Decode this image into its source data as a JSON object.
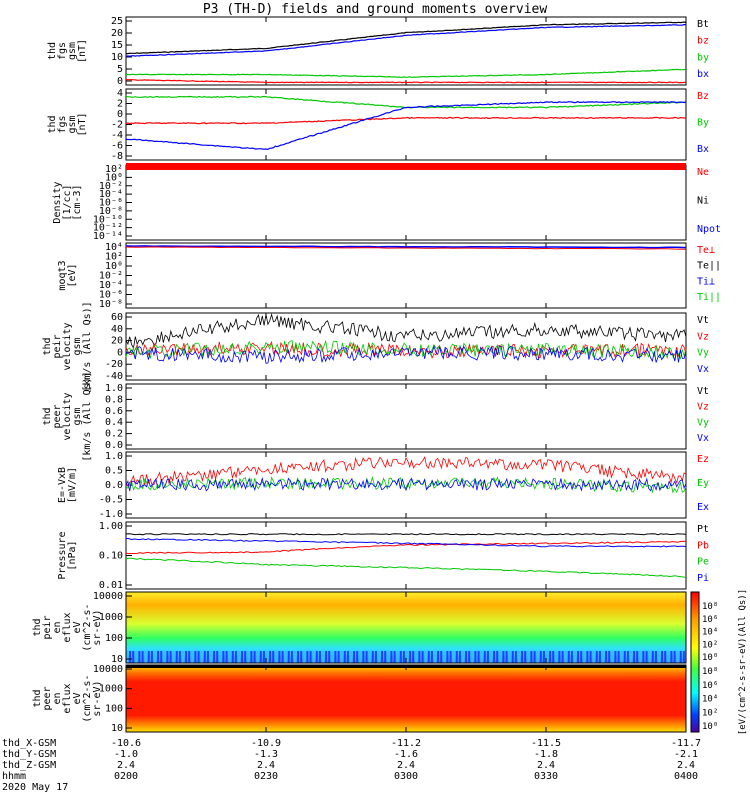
{
  "title": "P3 (TH-D) fields and ground moments overview",
  "date": "2020 May 17",
  "colors": {
    "black": "#000000",
    "red": "#ff0000",
    "green": "#00c800",
    "blue": "#0000ff"
  },
  "panels": [
    {
      "id": "fgs",
      "ylabel": [
        "thd",
        "fgs",
        "gsm",
        "[nT]"
      ],
      "yticks": [
        "25",
        "20",
        "15",
        "10",
        "5",
        "0"
      ],
      "legend": [
        {
          "t": "Bt",
          "c": "black"
        },
        {
          "t": "bz",
          "c": "red"
        },
        {
          "t": "by",
          "c": "green"
        },
        {
          "t": "bx",
          "c": "blue"
        }
      ]
    },
    {
      "id": "fgs2",
      "ylabel": [
        "thd",
        "fgs",
        "gsm",
        "[nT]"
      ],
      "yticks": [
        "4",
        "2",
        "0",
        "-2",
        "-4",
        "-6",
        "-8"
      ],
      "legend": [
        {
          "t": "Bz",
          "c": "red"
        },
        {
          "t": "By",
          "c": "green"
        },
        {
          "t": "Bx",
          "c": "blue"
        }
      ]
    },
    {
      "id": "density",
      "ylabel": [
        "Density",
        "[1/cc]",
        "[cm-3]"
      ],
      "yticks": [
        "10²",
        "10⁰",
        "10⁻²",
        "10⁻⁴",
        "10⁻⁶",
        "10⁻⁸",
        "10⁻¹⁰",
        "10⁻¹²",
        "10⁻¹⁴"
      ],
      "legend": [
        {
          "t": "Ne",
          "c": "red"
        },
        {
          "t": "Ni",
          "c": "black"
        },
        {
          "t": "Npot",
          "c": "blue"
        }
      ]
    },
    {
      "id": "temp",
      "ylabel": [
        "moqt3",
        "[eV]"
      ],
      "yticks": [
        "10⁴",
        "10²",
        "10⁰",
        "10⁻²",
        "10⁻⁴",
        "10⁻⁶",
        "10⁻⁸"
      ],
      "legend": [
        {
          "t": "Te⊥",
          "c": "red"
        },
        {
          "t": "Te||",
          "c": "black"
        },
        {
          "t": "Ti⊥",
          "c": "blue"
        },
        {
          "t": "Ti||",
          "c": "green"
        }
      ]
    },
    {
      "id": "peir",
      "ylabel": [
        "thd",
        "peir",
        "velocity",
        "gsm",
        "[km/s (All Qs)]"
      ],
      "yticks": [
        "60",
        "40",
        "20",
        "0",
        "-20",
        "-40"
      ],
      "legend": [
        {
          "t": "Vt",
          "c": "black"
        },
        {
          "t": "Vz",
          "c": "red"
        },
        {
          "t": "Vy",
          "c": "green"
        },
        {
          "t": "Vx",
          "c": "blue"
        }
      ]
    },
    {
      "id": "peer",
      "ylabel": [
        "thd",
        "peer",
        "velocity",
        "gsm",
        "[km/s (All Qs)]"
      ],
      "yticks": [
        "1.0",
        "0.8",
        "0.6",
        "0.4",
        "0.2",
        "0.0"
      ],
      "legend": [
        {
          "t": "Vt",
          "c": "black"
        },
        {
          "t": "Vz",
          "c": "red"
        },
        {
          "t": "Vy",
          "c": "green"
        },
        {
          "t": "Vx",
          "c": "blue"
        }
      ]
    },
    {
      "id": "efield",
      "ylabel": [
        "E=-VxB",
        "[mV/m]"
      ],
      "yticks": [
        "1.0",
        "0.5",
        "0.0",
        "-0.5",
        "-1.0"
      ],
      "legend": [
        {
          "t": "Ez",
          "c": "red"
        },
        {
          "t": "Ey",
          "c": "green"
        },
        {
          "t": "Ex",
          "c": "blue"
        }
      ]
    },
    {
      "id": "pressure",
      "ylabel": [
        "Pressure",
        "[nPa]"
      ],
      "yticks": [
        "1.00",
        "0.10",
        "0.01"
      ],
      "legend": [
        {
          "t": "Pt",
          "c": "black"
        },
        {
          "t": "Pb",
          "c": "red"
        },
        {
          "t": "Pe",
          "c": "green"
        },
        {
          "t": "Pi",
          "c": "blue"
        }
      ]
    },
    {
      "id": "peirspec",
      "ylabel": [
        "thd",
        "peir",
        "en",
        "eflux",
        "eV",
        "(cm^2-s-",
        "sr-eV)"
      ],
      "yticks": [
        "10000",
        "1000",
        "100",
        "10"
      ],
      "legend": []
    },
    {
      "id": "peerspec",
      "ylabel": [
        "thd",
        "peer",
        "en",
        "eflux",
        "eV",
        "(cm^2-s-",
        "sr-eV)"
      ],
      "yticks": [
        "10000",
        "1000",
        "100",
        "10"
      ],
      "legend": []
    }
  ],
  "colorbar": {
    "ticks": [
      "10⁸",
      "10⁶",
      "10⁴",
      "10²",
      "10⁰"
    ],
    "label": "[eV/(cm^2-s-sr-eV)(All Qs)]"
  },
  "chart_data": [
    {
      "type": "line",
      "title": "P3 (TH-D) fields and ground moments overview",
      "ylabel": "thd fgs gsm [nT]",
      "ylim": [
        0,
        26
      ],
      "x": [
        "0200",
        "0230",
        "0300",
        "0330",
        "0400"
      ],
      "series": [
        {
          "name": "Bt",
          "values": [
            12,
            14,
            20,
            23,
            24
          ]
        },
        {
          "name": "bz",
          "values": [
            2,
            1,
            1,
            1,
            1
          ]
        },
        {
          "name": "by",
          "values": [
            4,
            4,
            3,
            4,
            6
          ]
        },
        {
          "name": "bx",
          "values": [
            11,
            13,
            19,
            22,
            23
          ]
        }
      ]
    },
    {
      "type": "line",
      "ylabel": "thd fgs gsm [nT]",
      "ylim": [
        -9,
        4.5
      ],
      "x": [
        "0200",
        "0230",
        "0300",
        "0330",
        "0400"
      ],
      "series": [
        {
          "name": "Bz",
          "values": [
            -2,
            -2,
            -1,
            -1,
            -1
          ]
        },
        {
          "name": "By",
          "values": [
            3,
            3,
            1,
            1,
            2
          ]
        },
        {
          "name": "Bx",
          "values": [
            -5,
            -7,
            1,
            2,
            2
          ]
        }
      ]
    },
    {
      "type": "line",
      "ylabel": "Density [1/cc] [cm-3]",
      "x": [
        "0200",
        "0230",
        "0300",
        "0330",
        "0400"
      ],
      "series": [
        {
          "name": "Ne",
          "values": [
            1,
            1,
            1,
            1,
            1
          ]
        }
      ]
    },
    {
      "type": "line",
      "ylabel": "moqt3 [eV]",
      "x": [
        "0200",
        "0230",
        "0300",
        "0330",
        "0400"
      ],
      "series": [
        {
          "name": "Te⊥",
          "values": [
            1000,
            1000,
            1000,
            1000,
            1000
          ]
        }
      ]
    },
    {
      "type": "line",
      "ylabel": "thd peir velocity gsm [km/s (All Qs)]",
      "ylim": [
        -40,
        60
      ],
      "x": [
        "0200",
        "0230",
        "0300",
        "0330",
        "0400"
      ],
      "series": [
        {
          "name": "Vt",
          "values": [
            15,
            50,
            25,
            35,
            25
          ]
        },
        {
          "name": "Vz",
          "values": [
            5,
            8,
            3,
            3,
            5
          ]
        },
        {
          "name": "Vy",
          "values": [
            0,
            10,
            5,
            5,
            0
          ]
        },
        {
          "name": "Vx",
          "values": [
            0,
            -5,
            0,
            0,
            -5
          ]
        }
      ]
    },
    {
      "type": "line",
      "ylabel": "thd peer velocity gsm [km/s (All Qs)]",
      "ylim": [
        0,
        1
      ],
      "x": [
        "0200",
        "0230",
        "0300",
        "0330",
        "0400"
      ],
      "series": []
    },
    {
      "type": "line",
      "ylabel": "E=-VxB [mV/m]",
      "ylim": [
        -1,
        1
      ],
      "x": [
        "0200",
        "0230",
        "0300",
        "0330",
        "0400"
      ],
      "series": [
        {
          "name": "Ez",
          "values": [
            0.1,
            0.5,
            0.7,
            0.6,
            0.2
          ]
        },
        {
          "name": "Ey",
          "values": [
            0,
            0.05,
            0.05,
            0.05,
            -0.1
          ]
        },
        {
          "name": "Ex",
          "values": [
            0,
            0.02,
            0.02,
            0.02,
            0
          ]
        }
      ]
    },
    {
      "type": "line",
      "ylabel": "Pressure [nPa]",
      "x": [
        "0200",
        "0230",
        "0300",
        "0330",
        "0400"
      ],
      "series": [
        {
          "name": "Pt",
          "values": [
            0.5,
            0.5,
            0.5,
            0.5,
            0.5
          ]
        },
        {
          "name": "Pb",
          "values": [
            0.12,
            0.13,
            0.22,
            0.25,
            0.28
          ]
        },
        {
          "name": "Pe",
          "values": [
            0.08,
            0.05,
            0.04,
            0.03,
            0.02
          ]
        },
        {
          "name": "Pi",
          "values": [
            0.35,
            0.3,
            0.25,
            0.2,
            0.2
          ]
        }
      ]
    },
    {
      "type": "heatmap",
      "ylabel": "thd peir en eflux eV (cm^2-s-sr-eV)",
      "x": [
        "0200",
        "0230",
        "0300",
        "0330",
        "0400"
      ],
      "y": [
        10,
        100,
        1000,
        10000
      ]
    },
    {
      "type": "heatmap",
      "ylabel": "thd peer en eflux eV (cm^2-s-sr-eV)",
      "x": [
        "0200",
        "0230",
        "0300",
        "0330",
        "0400"
      ],
      "y": [
        10,
        100,
        1000,
        10000
      ]
    }
  ],
  "xaxis": {
    "labels": [
      "thd_X-GSM",
      "thd_Y-GSM",
      "thd_Z-GSM",
      "hhmm"
    ],
    "cols": [
      {
        "x": "-10.6",
        "y": "-1.0",
        "z": "2.4",
        "t": "0200"
      },
      {
        "x": "-10.9",
        "y": "-1.3",
        "z": "2.4",
        "t": "0230"
      },
      {
        "x": "-11.2",
        "y": "-1.6",
        "z": "2.4",
        "t": "0300"
      },
      {
        "x": "-11.5",
        "y": "-1.8",
        "z": "2.4",
        "t": "0330"
      },
      {
        "x": "-11.7",
        "y": "-2.1",
        "z": "2.4",
        "t": "0400"
      }
    ]
  }
}
